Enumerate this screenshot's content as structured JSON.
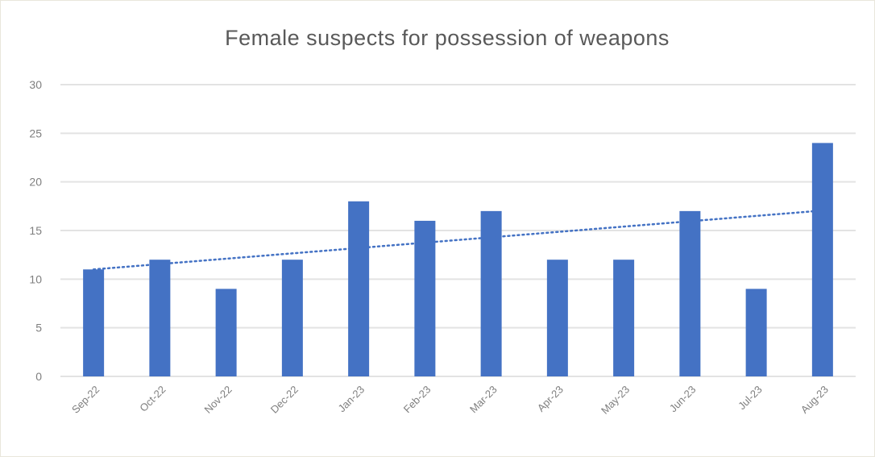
{
  "chart_data": {
    "type": "bar",
    "title": "Female suspects for possession of weapons",
    "categories": [
      "Sep-22",
      "Oct-22",
      "Nov-22",
      "Dec-22",
      "Jan-23",
      "Feb-23",
      "Mar-23",
      "Apr-23",
      "May-23",
      "Jun-23",
      "Jul-23",
      "Aug-23"
    ],
    "values": [
      11,
      12,
      9,
      12,
      18,
      16,
      17,
      12,
      12,
      17,
      9,
      24
    ],
    "ylim": [
      0,
      30
    ],
    "yticks": [
      0,
      5,
      10,
      15,
      20,
      25,
      30
    ],
    "xlabel": "",
    "ylabel": "",
    "grid": true,
    "legend": "none",
    "trendline": {
      "type": "linear",
      "style": "dotted",
      "start": 11.0,
      "end": 17.0,
      "span_categories": [
        "Sep-22",
        "Jul-23"
      ]
    },
    "colors": {
      "bar": "#4472c4",
      "trend": "#4472c4",
      "grid": "#e3e3e3",
      "text": "#7f7f7f"
    }
  }
}
